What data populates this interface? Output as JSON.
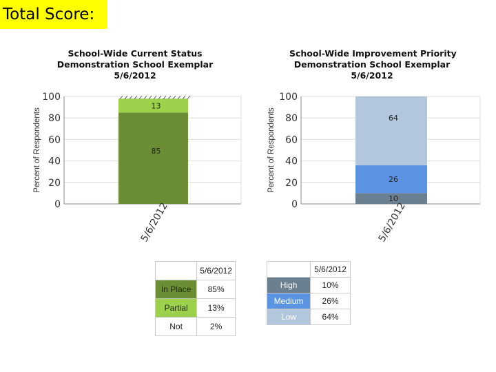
{
  "header": {
    "total_score_label": "Total Score:"
  },
  "colors": {
    "in_place": "#6b8e34",
    "partial": "#9dd14b",
    "not": "#ffffff",
    "high": "#6a7f8f",
    "medium": "#5b93e3",
    "low": "#b2c6dc"
  },
  "chart_data": [
    {
      "type": "bar",
      "stacked": true,
      "title_lines": [
        "School-Wide Current Status",
        "Demonstration School Exemplar",
        "5/6/2012"
      ],
      "ylabel": "Percent of Respondents",
      "ylim": [
        0,
        100
      ],
      "yticks": [
        0,
        20,
        40,
        60,
        80,
        100
      ],
      "categories": [
        "5/6/2012"
      ],
      "series": [
        {
          "name": "In Place",
          "values": [
            85
          ]
        },
        {
          "name": "Partial",
          "values": [
            13
          ]
        },
        {
          "name": "Not",
          "values": [
            2
          ]
        }
      ]
    },
    {
      "type": "bar",
      "stacked": true,
      "title_lines": [
        "School-Wide Improvement Priority",
        "Demonstration School Exemplar",
        "5/6/2012"
      ],
      "ylabel": "Percent of Respondents",
      "ylim": [
        0,
        100
      ],
      "yticks": [
        0,
        20,
        40,
        60,
        80,
        100
      ],
      "categories": [
        "5/6/2012"
      ],
      "series": [
        {
          "name": "High",
          "values": [
            10
          ]
        },
        {
          "name": "Medium",
          "values": [
            26
          ]
        },
        {
          "name": "Low",
          "values": [
            64
          ]
        }
      ]
    }
  ],
  "tables": {
    "left": {
      "header": "5/6/2012",
      "rows": [
        {
          "label": "In Place",
          "value": "85%"
        },
        {
          "label": "Partial",
          "value": "13%"
        },
        {
          "label": "Not",
          "value": "2%"
        }
      ]
    },
    "right": {
      "header": "5/6/2012",
      "rows": [
        {
          "label": "High",
          "value": "10%"
        },
        {
          "label": "Medium",
          "value": "26%"
        },
        {
          "label": "Low",
          "value": "64%"
        }
      ]
    }
  }
}
